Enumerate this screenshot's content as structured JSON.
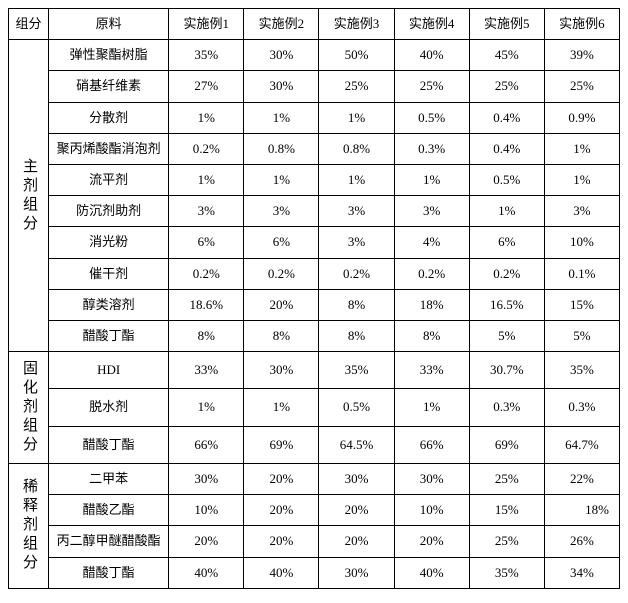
{
  "table": {
    "headers": [
      "组分",
      "原料",
      "实施例1",
      "实施例2",
      "实施例3",
      "实施例4",
      "实施例5",
      "实施例6"
    ],
    "groups": [
      {
        "label": "主剂组分",
        "rows": [
          {
            "material": "弹性聚酯树脂",
            "v": [
              "35%",
              "30%",
              "50%",
              "40%",
              "45%",
              "39%"
            ]
          },
          {
            "material": "硝基纤维素",
            "v": [
              "27%",
              "30%",
              "25%",
              "25%",
              "25%",
              "25%"
            ]
          },
          {
            "material": "分散剂",
            "v": [
              "1%",
              "1%",
              "1%",
              "0.5%",
              "0.4%",
              "0.9%"
            ]
          },
          {
            "material": "聚丙烯酸酯消泡剂",
            "v": [
              "0.2%",
              "0.8%",
              "0.8%",
              "0.3%",
              "0.4%",
              "1%"
            ]
          },
          {
            "material": "流平剂",
            "v": [
              "1%",
              "1%",
              "1%",
              "1%",
              "0.5%",
              "1%"
            ]
          },
          {
            "material": "防沉剂助剂",
            "v": [
              "3%",
              "3%",
              "3%",
              "3%",
              "1%",
              "3%"
            ]
          },
          {
            "material": "消光粉",
            "v": [
              "6%",
              "6%",
              "3%",
              "4%",
              "6%",
              "10%"
            ]
          },
          {
            "material": "催干剂",
            "v": [
              "0.2%",
              "0.2%",
              "0.2%",
              "0.2%",
              "0.2%",
              "0.1%"
            ]
          },
          {
            "material": "醇类溶剂",
            "v": [
              "18.6%",
              "20%",
              "8%",
              "18%",
              "16.5%",
              "15%"
            ]
          },
          {
            "material": "醋酸丁酯",
            "v": [
              "8%",
              "8%",
              "8%",
              "8%",
              "5%",
              "5%"
            ]
          }
        ]
      },
      {
        "label": "固化剂组分",
        "rows": [
          {
            "material": "HDI",
            "v": [
              "33%",
              "30%",
              "35%",
              "33%",
              "30.7%",
              "35%"
            ]
          },
          {
            "material": "脱水剂",
            "v": [
              "1%",
              "1%",
              "0.5%",
              "1%",
              "0.3%",
              "0.3%"
            ]
          },
          {
            "material": "醋酸丁酯",
            "v": [
              "66%",
              "69%",
              "64.5%",
              "66%",
              "69%",
              "64.7%"
            ]
          }
        ]
      },
      {
        "label": "稀释剂组分",
        "rows": [
          {
            "material": "二甲苯",
            "v": [
              "30%",
              "20%",
              "30%",
              "30%",
              "25%",
              "22%"
            ]
          },
          {
            "material": "醋酸乙酯",
            "v": [
              "10%",
              "20%",
              "20%",
              "10%",
              "15%",
              "18%"
            ],
            "lastRight": true
          },
          {
            "material": "丙二醇甲醚醋酸酯",
            "v": [
              "20%",
              "20%",
              "20%",
              "20%",
              "25%",
              "26%"
            ]
          },
          {
            "material": "醋酸丁酯",
            "v": [
              "40%",
              "40%",
              "30%",
              "40%",
              "35%",
              "34%"
            ]
          }
        ]
      }
    ]
  }
}
